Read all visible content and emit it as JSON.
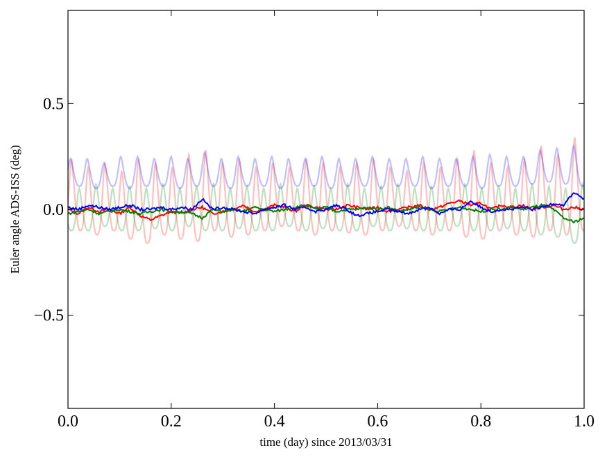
{
  "chart_data": {
    "type": "line",
    "title": "",
    "xlabel": "time (day) since 2013/03/31",
    "ylabel": "Euler angle ADS-ISS (deg)",
    "xlim": [
      0.0,
      1.0
    ],
    "ylim": [
      -0.94,
      0.94
    ],
    "xticks": [
      "0.0",
      "0.2",
      "0.4",
      "0.6",
      "0.8",
      "1.0"
    ],
    "xtick_values": [
      0.0,
      0.2,
      0.4,
      0.6,
      0.8,
      1.0
    ],
    "yticks": [
      "−0.5",
      "0.0",
      "0.5"
    ],
    "ytick_values": [
      -0.5,
      0.0,
      0.5
    ],
    "grid": false,
    "periodic_series": [
      {
        "name": "faint-red",
        "color": "#ff0000",
        "opacity": 0.25,
        "phase": 0.007,
        "period": 0.0325,
        "peaks": [
          0.24,
          0.2,
          0.22,
          0.18,
          0.24,
          0.22,
          0.2,
          0.26,
          0.28,
          0.22,
          0.24,
          0.2,
          0.22,
          0.2,
          0.24,
          0.22,
          0.2,
          0.22,
          0.24,
          0.2,
          0.18,
          0.22,
          0.2,
          0.24,
          0.28,
          0.22,
          0.2,
          0.24,
          0.3,
          0.26,
          0.34
        ],
        "troughs": [
          -0.1,
          -0.12,
          -0.1,
          -0.14,
          -0.16,
          -0.12,
          -0.14,
          -0.15,
          -0.1,
          -0.13,
          -0.12,
          -0.1,
          -0.08,
          -0.1,
          -0.12,
          -0.1,
          -0.11,
          -0.12,
          -0.1,
          -0.08,
          -0.1,
          -0.12,
          -0.1,
          -0.13,
          -0.14,
          -0.1,
          -0.12,
          -0.13,
          -0.1,
          -0.12,
          -0.1
        ]
      },
      {
        "name": "faint-green",
        "color": "#008000",
        "opacity": 0.25,
        "phase": 0.022,
        "period": 0.0325,
        "peaks": [
          0.1,
          0.12,
          0.1,
          0.11,
          0.1,
          0.12,
          0.1,
          0.11,
          0.12,
          0.1,
          0.11,
          0.1,
          0.12,
          0.1,
          0.11,
          0.1,
          0.12,
          0.1,
          0.11,
          0.12,
          0.1,
          0.11,
          0.1,
          0.12,
          0.1,
          0.11,
          0.1,
          0.12,
          0.11,
          0.1,
          0.12
        ],
        "troughs": [
          -0.1,
          -0.08,
          -0.1,
          -0.1,
          -0.09,
          -0.1,
          -0.08,
          -0.1,
          -0.1,
          -0.09,
          -0.1,
          -0.1,
          -0.08,
          -0.1,
          -0.09,
          -0.1,
          -0.1,
          -0.08,
          -0.1,
          -0.09,
          -0.1,
          -0.1,
          -0.08,
          -0.1,
          -0.1,
          -0.09,
          -0.1,
          -0.12,
          -0.13,
          -0.16,
          -0.12
        ]
      },
      {
        "name": "faint-blue",
        "color": "#0000ff",
        "opacity": 0.25,
        "phase": 0.005,
        "period": 0.0325,
        "peaks": [
          0.24,
          0.24,
          0.22,
          0.25,
          0.25,
          0.24,
          0.25,
          0.24,
          0.27,
          0.24,
          0.25,
          0.24,
          0.25,
          0.24,
          0.24,
          0.25,
          0.24,
          0.24,
          0.25,
          0.24,
          0.24,
          0.25,
          0.24,
          0.24,
          0.25,
          0.26,
          0.25,
          0.25,
          0.28,
          0.29,
          0.3
        ],
        "troughs": [
          0.11,
          0.1,
          0.11,
          0.1,
          0.11,
          0.11,
          0.1,
          0.11,
          0.11,
          0.1,
          0.11,
          0.11,
          0.1,
          0.11,
          0.11,
          0.1,
          0.11,
          0.11,
          0.1,
          0.11,
          0.11,
          0.1,
          0.11,
          0.11,
          0.1,
          0.11,
          0.11,
          0.12,
          0.13,
          0.12,
          0.11
        ]
      }
    ],
    "series": [
      {
        "name": "red",
        "color": "#ff0000",
        "x_step": 0.02,
        "values": [
          0.0,
          -0.02,
          0.01,
          -0.01,
          0.0,
          -0.02,
          0.01,
          -0.03,
          -0.05,
          -0.03,
          -0.01,
          -0.02,
          0.0,
          0.01,
          -0.02,
          -0.01,
          0.0,
          0.02,
          -0.01,
          0.0,
          0.02,
          0.01,
          -0.01,
          0.02,
          0.01,
          0.0,
          0.0,
          0.02,
          0.01,
          0.0,
          0.01,
          -0.01,
          0.0,
          0.01,
          0.02,
          0.0,
          0.01,
          0.03,
          0.04,
          0.02,
          0.03,
          0.0,
          0.02,
          0.01,
          0.02,
          0.0,
          0.01,
          0.02,
          0.0,
          0.01,
          0.0
        ]
      },
      {
        "name": "green",
        "color": "#008000",
        "x_step": 0.02,
        "values": [
          -0.02,
          -0.01,
          0.0,
          -0.02,
          -0.01,
          0.0,
          -0.01,
          -0.02,
          -0.01,
          0.0,
          -0.01,
          -0.01,
          -0.02,
          -0.04,
          0.0,
          -0.01,
          0.0,
          -0.01,
          0.01,
          0.0,
          -0.01,
          0.0,
          0.01,
          0.02,
          0.0,
          0.01,
          -0.01,
          0.0,
          0.0,
          0.01,
          0.0,
          0.01,
          -0.01,
          0.0,
          0.01,
          0.0,
          -0.01,
          0.0,
          0.01,
          0.0,
          -0.01,
          0.0,
          0.0,
          0.01,
          0.0,
          0.01,
          0.02,
          0.0,
          -0.04,
          -0.06,
          -0.04
        ]
      },
      {
        "name": "blue",
        "color": "#0000ff",
        "x_step": 0.02,
        "values": [
          0.01,
          0.0,
          0.02,
          0.01,
          0.0,
          0.01,
          0.02,
          0.0,
          0.0,
          0.01,
          0.0,
          0.01,
          0.0,
          0.05,
          0.0,
          0.01,
          0.0,
          -0.01,
          -0.02,
          0.0,
          0.01,
          0.02,
          0.0,
          0.01,
          -0.01,
          0.0,
          0.02,
          0.0,
          -0.03,
          -0.02,
          -0.01,
          0.0,
          -0.01,
          -0.02,
          0.0,
          0.01,
          -0.02,
          0.0,
          0.0,
          0.04,
          0.01,
          -0.01,
          0.0,
          0.0,
          0.01,
          0.0,
          0.01,
          0.03,
          0.02,
          0.08,
          0.05
        ]
      }
    ]
  }
}
